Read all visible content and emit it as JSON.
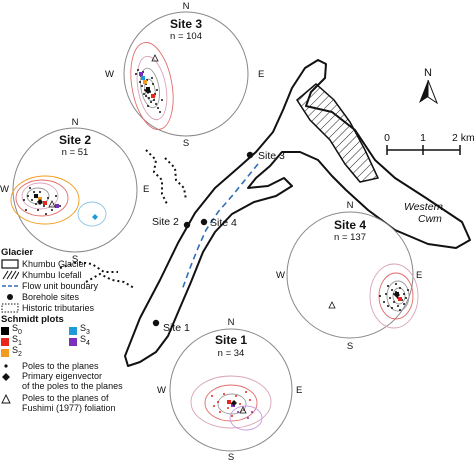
{
  "sites": [
    {
      "title": "Site 3",
      "n_label": "n = 104",
      "N": "N",
      "E": "E",
      "S": "S",
      "W": "W"
    },
    {
      "title": "Site 2",
      "n_label": "n = 51",
      "N": "N",
      "E": "E",
      "S": "S",
      "W": "W"
    },
    {
      "title": "Site 4",
      "n_label": "n = 137",
      "N": "N",
      "E": "E",
      "S": "S",
      "W": "W"
    },
    {
      "title": "Site 1",
      "n_label": "n = 34",
      "N": "N",
      "E": "E",
      "S": "S",
      "W": "W"
    }
  ],
  "map_labels": {
    "site1": "Site 1",
    "site2": "Site 2",
    "site3": "Site 3",
    "site4": "Site 4",
    "western_cwm": [
      "Western",
      "Cwm"
    ]
  },
  "north_arrow": {
    "label": "N"
  },
  "scale_bar": {
    "ticks": [
      "0",
      "1",
      "2 km"
    ]
  },
  "legend": {
    "glacier_header": "Glacier",
    "glacier_items": [
      {
        "label": "Khumbu Glacier",
        "icon": "outline-box"
      },
      {
        "label": "Khumbu Icefall",
        "icon": "hatched-box"
      },
      {
        "label": "Flow unit boundary",
        "icon": "dashed-line"
      },
      {
        "label": "Borehole sites",
        "icon": "dot"
      },
      {
        "label": "Historic tributaries",
        "icon": "dotted-box"
      }
    ],
    "schmidt_header": "Schmidt plots",
    "schmidt_items": [
      {
        "symbol": "S",
        "sub": "0",
        "color": "#000000"
      },
      {
        "symbol": "S",
        "sub": "3",
        "color": "#1f9ad6"
      },
      {
        "symbol": "S",
        "sub": "1",
        "color": "#e8261c"
      },
      {
        "symbol": "S",
        "sub": "4",
        "color": "#7b2fbe"
      },
      {
        "symbol": "S",
        "sub": "2",
        "color": "#f29a1f"
      }
    ],
    "poles_label": "Poles to the planes",
    "eigen_label_1": "Primary eigenvector",
    "eigen_label_2": "of the poles to the planes",
    "fushimi_label_1": "Poles to the planes of",
    "fushimi_label_2": "Fushimi (1977) foliation"
  },
  "colors": {
    "s0": "#000000",
    "s1": "#e8261c",
    "s2": "#f29a1f",
    "s3": "#1f9ad6",
    "s4": "#7b2fbe",
    "flow_boundary": "#2f6fb6",
    "contour_red": "#e26b6b",
    "contour_pink": "#d9a3b8",
    "contour_grey": "#9a9a9a"
  }
}
